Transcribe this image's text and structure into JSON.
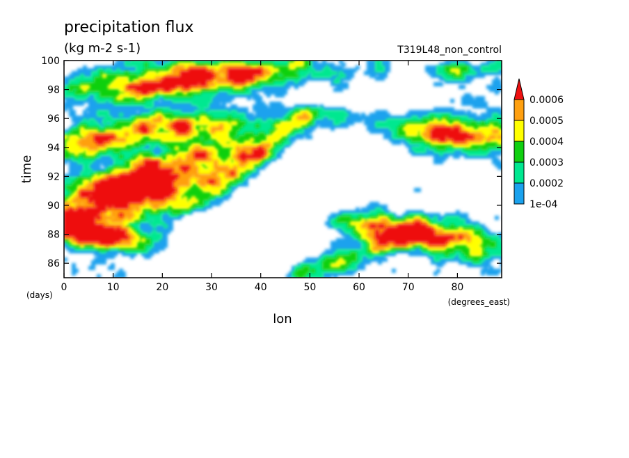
{
  "chart_data": {
    "type": "heatmap",
    "title": "precipitation flux",
    "subtitle": "(kg m-2 s-1)",
    "experiment": "T319L48_non_control",
    "xlabel": "lon",
    "xunits": "(degrees_east)",
    "ylabel": "time",
    "yunits": "(days)",
    "xlim": [
      0,
      89
    ],
    "ylim": [
      85,
      100
    ],
    "x_ticks": [
      "0",
      "10",
      "20",
      "30",
      "40",
      "50",
      "60",
      "70",
      "80"
    ],
    "y_ticks": [
      "86",
      "88",
      "90",
      "92",
      "94",
      "96",
      "98",
      "100"
    ],
    "grid": false,
    "legend": {
      "position": "right",
      "levels": [
        "1e-04",
        "0.0002",
        "0.0003",
        "0.0004",
        "0.0005",
        "0.0006"
      ],
      "colors": [
        "#1aa2ee",
        "#00e890",
        "#10d010",
        "#ffff00",
        "#ffa010",
        "#ee1010"
      ]
    }
  }
}
